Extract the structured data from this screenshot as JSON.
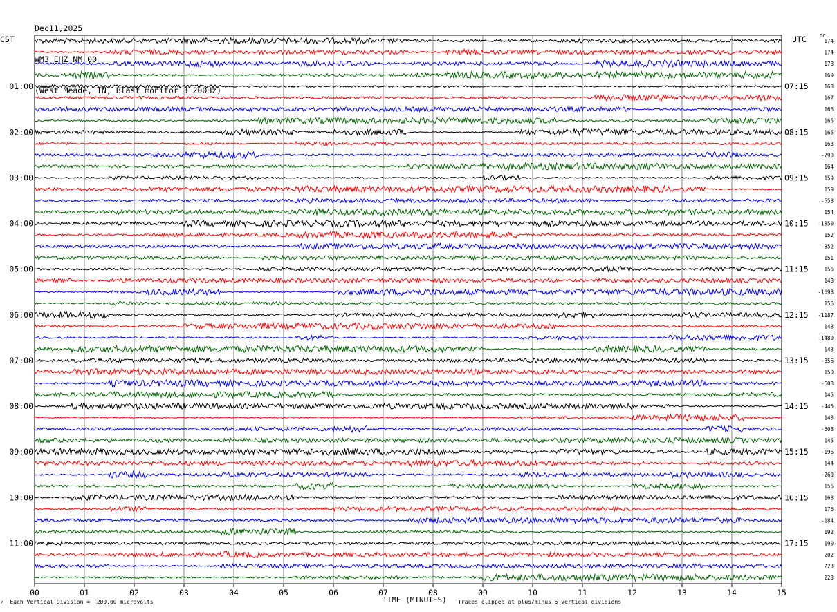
{
  "chart_data": {
    "type": "line",
    "title_lines": [
      "Dec11,2025",
      "WM3 EHZ NM 00",
      "(West Meade, TN, Blast monitor 3 200Hz)"
    ],
    "left_axis_title": "CST",
    "right_axis_title": "UTC",
    "dc_header": "DC",
    "xlabel": "TIME (MINUTES)",
    "x_ticks": [
      "00",
      "01",
      "02",
      "03",
      "04",
      "05",
      "06",
      "07",
      "08",
      "09",
      "10",
      "11",
      "12",
      "13",
      "14",
      "15"
    ],
    "xlim": [
      0,
      15
    ],
    "left_hour_labels": [
      "01:00",
      "02:00",
      "03:00",
      "04:00",
      "05:00",
      "06:00",
      "07:00",
      "08:00",
      "09:00",
      "10:00",
      "11:00"
    ],
    "right_hour_labels": [
      "07:15",
      "08:15",
      "09:15",
      "10:15",
      "11:15",
      "12:15",
      "13:15",
      "14:15",
      "15:15",
      "16:15",
      "17:15"
    ],
    "trace_colors": [
      "#000000",
      "#ff0000",
      "#0000ff",
      "#006600"
    ],
    "grid": true,
    "dc_offsets": [
      "174",
      "174",
      "178",
      "169",
      "168",
      "167",
      "166",
      "165",
      "165",
      "163",
      "-790",
      "164",
      "159",
      "159",
      "-558",
      "154",
      "-1850",
      "152",
      "-852",
      "151",
      "156",
      "148",
      "-1698",
      "156",
      "-1187",
      "148",
      "-1480",
      "143",
      "-356",
      "150",
      "-608",
      "145",
      "-445",
      "143",
      "-608",
      "145",
      "-196",
      "144",
      "-260",
      "156",
      "168",
      "176",
      "-184",
      "192",
      "190",
      "202",
      "223",
      "223"
    ],
    "trace_rows": 48,
    "vertical_division": "Each Vertical Division =  200.00 microvolts",
    "clip_note": "Traces clipped at plus/minus 5 vertical divisions",
    "corner_mark": "↗"
  }
}
